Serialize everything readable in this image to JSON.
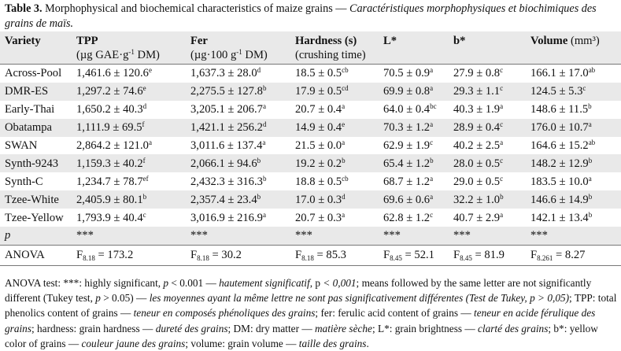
{
  "caption": {
    "label": "Table 3.",
    "title_en": "Morphophysical and biochemical characteristics of maize grains —",
    "title_fr": "Caractéristiques morphophysiques et biochimiques des grains de maïs."
  },
  "headers": [
    {
      "name": "Variety",
      "unit": ""
    },
    {
      "name": "TPP",
      "unit": "(µg GAE·g-1 DM)"
    },
    {
      "name": "Fer",
      "unit": "(µg·100 g-1 DM)"
    },
    {
      "name": "Hardness (s)",
      "unit": "(crushing time)"
    },
    {
      "name": "L*",
      "unit": ""
    },
    {
      "name": "b*",
      "unit": ""
    },
    {
      "name": "Volume (mm³)",
      "unit": ""
    }
  ],
  "rows": [
    {
      "variety": "Across-Pool",
      "cells": [
        [
          "1,461.6 ± 120.6",
          "e"
        ],
        [
          "1,637.3 ± 28.0",
          "d"
        ],
        [
          "18.5 ± 0.5",
          "cb"
        ],
        [
          "70.5 ± 0.9",
          "a"
        ],
        [
          "27.9 ± 0.8",
          "c"
        ],
        [
          "166.1 ± 17.0",
          "ab"
        ]
      ]
    },
    {
      "variety": "DMR-ES",
      "cells": [
        [
          "1,297.2 ± 74.6",
          "e"
        ],
        [
          "2,275.5 ± 127.8",
          "b"
        ],
        [
          "17.9 ± 0.5",
          "cd"
        ],
        [
          "69.9 ± 0.8",
          "a"
        ],
        [
          "29.3 ± 1.1",
          "c"
        ],
        [
          "124.5 ± 5.3",
          "c"
        ]
      ]
    },
    {
      "variety": "Early-Thai",
      "cells": [
        [
          "1,650.2 ± 40.3",
          "d"
        ],
        [
          "3,205.1 ± 206.7",
          "a"
        ],
        [
          "20.7 ± 0.4",
          "a"
        ],
        [
          "64.0 ± 0.4",
          "bc"
        ],
        [
          "40.3 ± 1.9",
          "a"
        ],
        [
          "148.6 ± 11.5",
          "b"
        ]
      ]
    },
    {
      "variety": "Obatampa",
      "cells": [
        [
          "1,111.9 ± 69.5",
          "f"
        ],
        [
          "1,421.1 ± 256.2",
          "d"
        ],
        [
          "14.9 ± 0.4",
          "e"
        ],
        [
          "70.3 ± 1.2",
          "a"
        ],
        [
          "28.9 ± 0.4",
          "c"
        ],
        [
          "176.0 ± 10.7",
          "a"
        ]
      ]
    },
    {
      "variety": "SWAN",
      "cells": [
        [
          "2,864.2 ± 121.0",
          "a"
        ],
        [
          "3,011.6 ± 137.4",
          "a"
        ],
        [
          "21.5 ± 0.0",
          "a"
        ],
        [
          "62.9 ± 1.9",
          "c"
        ],
        [
          "40.2 ± 2.5",
          "a"
        ],
        [
          "164.6 ± 15.2",
          "ab"
        ]
      ]
    },
    {
      "variety": "Synth-9243",
      "cells": [
        [
          "1,159.3 ± 40.2",
          "f"
        ],
        [
          "2,066.1 ± 94.6",
          "b"
        ],
        [
          "19.2 ± 0.2",
          "b"
        ],
        [
          "65.4 ± 1.2",
          "b"
        ],
        [
          "28.0 ± 0.5",
          "c"
        ],
        [
          "148.2 ± 12.9",
          "b"
        ]
      ]
    },
    {
      "variety": "Synth-C",
      "cells": [
        [
          "1,234.7 ± 78.7",
          "ef"
        ],
        [
          "2,432.3 ± 316.3",
          "b"
        ],
        [
          "18.8 ± 0.5",
          "cb"
        ],
        [
          "68.7 ± 1.2",
          "a"
        ],
        [
          "29.0 ± 0.5",
          "c"
        ],
        [
          "183.5 ± 10.0",
          "a"
        ]
      ]
    },
    {
      "variety": "Tzee-White",
      "cells": [
        [
          "2,405.9 ± 80.1",
          "b"
        ],
        [
          "2,357.4 ± 23.4",
          "b"
        ],
        [
          "17.0 ± 0.3",
          "d"
        ],
        [
          "69.6 ± 0.6",
          "a"
        ],
        [
          "32.2 ± 1.0",
          "b"
        ],
        [
          "146.6 ± 14.9",
          "b"
        ]
      ]
    },
    {
      "variety": "Tzee-Yellow",
      "cells": [
        [
          "1,793.9 ± 40.4",
          "c"
        ],
        [
          "3,016.9 ± 216.9",
          "a"
        ],
        [
          "20.7 ± 0.3",
          "a"
        ],
        [
          "62.8 ± 1.2",
          "c"
        ],
        [
          "40.7 ± 2.9",
          "a"
        ],
        [
          "142.1 ± 13.4",
          "b"
        ]
      ]
    }
  ],
  "p_row": {
    "label": "p",
    "values": [
      "***",
      "***",
      "***",
      "***",
      "***",
      "***"
    ]
  },
  "anova_row": {
    "label": "ANOVA",
    "values": [
      [
        "F",
        "8.18",
        "= 173.2"
      ],
      [
        "F",
        "8.18",
        "= 30.2"
      ],
      [
        "F",
        "8.18",
        "= 85.3"
      ],
      [
        "F",
        "8.45",
        "= 52.1"
      ],
      [
        "F",
        "8.45",
        "= 81.9"
      ],
      [
        "F",
        "8.261",
        "= 8.27"
      ]
    ]
  },
  "footnote": [
    {
      "t": "ANOVA test: ***: highly significant, ",
      "i": false
    },
    {
      "t": "p",
      "i": true
    },
    {
      "t": " < 0.001 — ",
      "i": false
    },
    {
      "t": "hautement significatif",
      "i": true
    },
    {
      "t": ", p ",
      "i": false
    },
    {
      "t": "< 0,001",
      "i": true
    },
    {
      "t": "; means followed by the same letter are not significantly different (Tukey test, ",
      "i": false
    },
    {
      "t": "p",
      "i": true
    },
    {
      "t": " > 0.05) — ",
      "i": false
    },
    {
      "t": "les moyennes ayant la même lettre ne sont pas significativement différentes (Test de Tukey, p > 0,05)",
      "i": true
    },
    {
      "t": "; TPP: total phenolics content of grains — ",
      "i": false
    },
    {
      "t": "teneur en composés phénoliques des grains",
      "i": true
    },
    {
      "t": "; fer: ferulic acid content of grains — ",
      "i": false
    },
    {
      "t": "teneur en acide férulique des grains",
      "i": true
    },
    {
      "t": "; hardness: grain hardness — ",
      "i": false
    },
    {
      "t": "dureté des grains",
      "i": true
    },
    {
      "t": "; DM: dry matter — ",
      "i": false
    },
    {
      "t": "matière sèche",
      "i": true
    },
    {
      "t": "; L*: grain brightness — ",
      "i": false
    },
    {
      "t": "clarté des grains",
      "i": true
    },
    {
      "t": "; b*: yellow color of grains — ",
      "i": false
    },
    {
      "t": "couleur jaune des grains",
      "i": true
    },
    {
      "t": "; volume: grain volume — ",
      "i": false
    },
    {
      "t": "taille des grains",
      "i": true
    },
    {
      "t": ".",
      "i": false
    }
  ]
}
